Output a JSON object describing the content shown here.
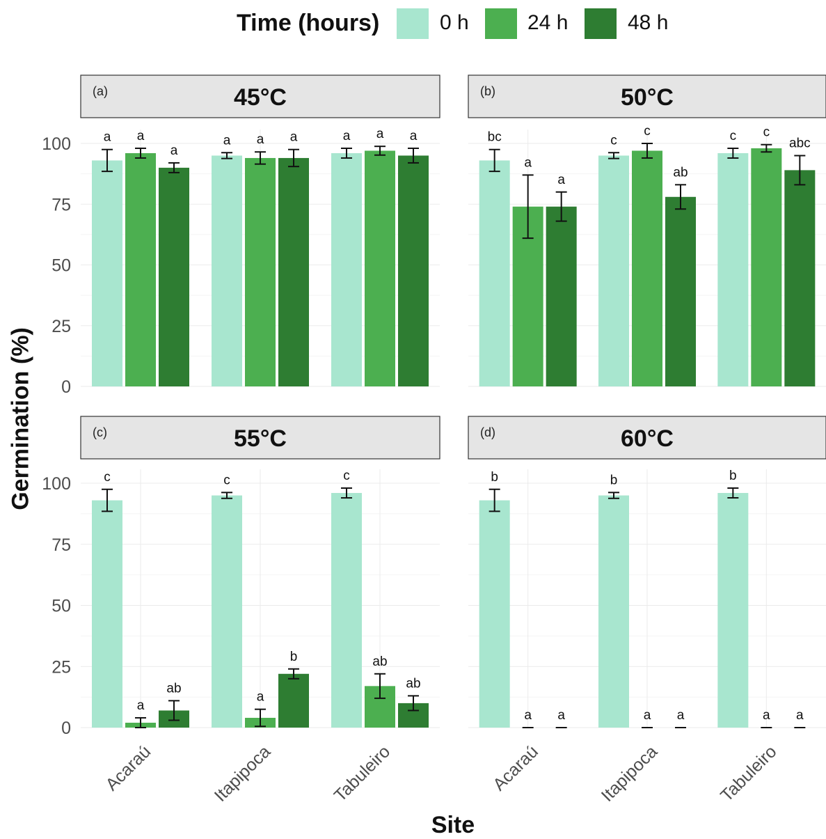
{
  "legend": {
    "title": "Time (hours)",
    "items": [
      {
        "label": "0 h",
        "color": "#a8e6cf"
      },
      {
        "label": "24 h",
        "color": "#4caf50"
      },
      {
        "label": "48 h",
        "color": "#2e7d32"
      }
    ]
  },
  "axes": {
    "ylabel": "Germination (%)",
    "xlabel": "Site"
  },
  "chart_data": [
    {
      "type": "bar",
      "panel_tag": "(a)",
      "title": "45°C",
      "categories": [
        "Acaraú",
        "Itapipoca",
        "Tabuleiro"
      ],
      "ylim": [
        0,
        100
      ],
      "yticks": [
        0,
        25,
        50,
        75,
        100
      ],
      "series": [
        {
          "name": "0 h",
          "values": [
            93,
            95,
            96
          ],
          "err": [
            4.5,
            1.2,
            2
          ],
          "labels": [
            "a",
            "a",
            "a"
          ]
        },
        {
          "name": "24 h",
          "values": [
            96,
            94,
            97
          ],
          "err": [
            2,
            2.5,
            1.8
          ],
          "labels": [
            "a",
            "a",
            "a"
          ]
        },
        {
          "name": "48 h",
          "values": [
            90,
            94,
            95
          ],
          "err": [
            2,
            3.5,
            3
          ],
          "labels": [
            "a",
            "a",
            "a"
          ]
        }
      ]
    },
    {
      "type": "bar",
      "panel_tag": "(b)",
      "title": "50°C",
      "categories": [
        "Acaraú",
        "Itapipoca",
        "Tabuleiro"
      ],
      "ylim": [
        0,
        100
      ],
      "yticks": [
        0,
        25,
        50,
        75,
        100
      ],
      "series": [
        {
          "name": "0 h",
          "values": [
            93,
            95,
            96
          ],
          "err": [
            4.5,
            1.2,
            2
          ],
          "labels": [
            "bc",
            "c",
            "c"
          ]
        },
        {
          "name": "24 h",
          "values": [
            74,
            97,
            98
          ],
          "err": [
            13,
            3,
            1.5
          ],
          "labels": [
            "a",
            "c",
            "c"
          ]
        },
        {
          "name": "48 h",
          "values": [
            74,
            78,
            89
          ],
          "err": [
            6,
            5,
            6
          ],
          "labels": [
            "a",
            "ab",
            "abc"
          ]
        }
      ]
    },
    {
      "type": "bar",
      "panel_tag": "(c)",
      "title": "55°C",
      "categories": [
        "Acaraú",
        "Itapipoca",
        "Tabuleiro"
      ],
      "ylim": [
        0,
        100
      ],
      "yticks": [
        0,
        25,
        50,
        75,
        100
      ],
      "series": [
        {
          "name": "0 h",
          "values": [
            93,
            95,
            96
          ],
          "err": [
            4.5,
            1.2,
            2
          ],
          "labels": [
            "c",
            "c",
            "c"
          ]
        },
        {
          "name": "24 h",
          "values": [
            2,
            4,
            17
          ],
          "err": [
            2,
            3.5,
            5
          ],
          "labels": [
            "a",
            "a",
            "ab"
          ]
        },
        {
          "name": "48 h",
          "values": [
            7,
            22,
            10
          ],
          "err": [
            4,
            2,
            3
          ],
          "labels": [
            "ab",
            "b",
            "ab"
          ]
        }
      ]
    },
    {
      "type": "bar",
      "panel_tag": "(d)",
      "title": "60°C",
      "categories": [
        "Acaraú",
        "Itapipoca",
        "Tabuleiro"
      ],
      "ylim": [
        0,
        100
      ],
      "yticks": [
        0,
        25,
        50,
        75,
        100
      ],
      "series": [
        {
          "name": "0 h",
          "values": [
            93,
            95,
            96
          ],
          "err": [
            4.5,
            1.2,
            2
          ],
          "labels": [
            "b",
            "b",
            "b"
          ]
        },
        {
          "name": "24 h",
          "values": [
            0,
            0,
            0
          ],
          "err": [
            0,
            0,
            0
          ],
          "labels": [
            "a",
            "a",
            "a"
          ]
        },
        {
          "name": "48 h",
          "values": [
            0,
            0,
            0
          ],
          "err": [
            0,
            0,
            0
          ],
          "labels": [
            "a",
            "a",
            "a"
          ]
        }
      ]
    }
  ]
}
